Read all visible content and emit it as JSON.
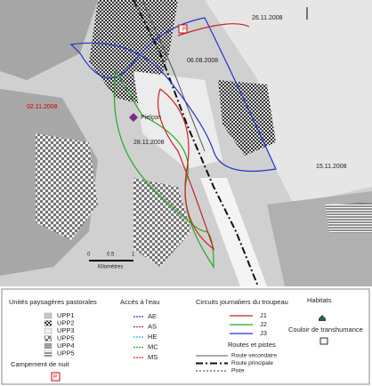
{
  "map": {
    "labels": [
      "26.11.2008",
      "P",
      "06.08.2008",
      "Pielçon",
      "28.11.2008",
      "02.11.2008",
      "15.11.2008"
    ],
    "scale": {
      "ticks": [
        "0",
        "0.5",
        "1"
      ],
      "unit": "Kilomètres"
    }
  },
  "legend": {
    "landscape": {
      "title": "Unités paysagères pastorales",
      "items": [
        "UPP1",
        "UPP2",
        "UPP3",
        "UPP5",
        "UPP4",
        "UPP5"
      ]
    },
    "camp": {
      "title": "Campement de nuit",
      "symbol": "P"
    },
    "water": {
      "title": "Accès à l'eau",
      "items": [
        "AE",
        "AS",
        "HE",
        "MC",
        "MS"
      ]
    },
    "circuits": {
      "title": "Circuits journaliers du troupeau",
      "items": [
        "J1",
        "J2",
        "J3"
      ]
    },
    "roads": {
      "title": "Routes et pistes",
      "items": [
        "Route secondaire",
        "Route principale",
        "Piste"
      ]
    },
    "habitats": {
      "title": "Habitats"
    },
    "corridor": {
      "title": "Couloir de transhumance"
    }
  }
}
